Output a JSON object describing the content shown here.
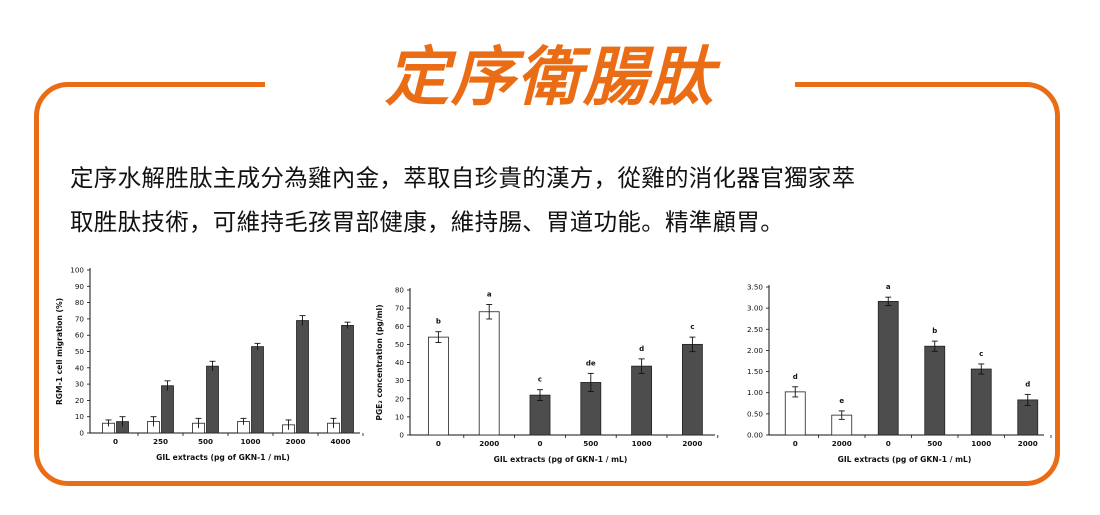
{
  "title": "定序衛腸肽",
  "description": {
    "line1": "定序水解胜肽主成分為雞內金，萃取自珍貴的漢方，從雞的消化器官獨家萃",
    "line2": "取胜肽技術，可維持毛孩胃部健康，維持腸、胃道功能。精準顧胃。"
  },
  "colors": {
    "accent": "#ea6d15",
    "bar_dark": "#4d4d4d",
    "bar_light": "#ffffff"
  },
  "chart_data": [
    {
      "type": "bar",
      "xlabel": "GIL extracts (pg of GKN-1 / mL)",
      "ylabel": "RGM-1 cell migration (%)",
      "ylim": [
        0,
        100
      ],
      "yticks": [
        "0",
        "10",
        "20",
        "30",
        "40",
        "50",
        "60",
        "70",
        "80",
        "90",
        "100"
      ],
      "categories": [
        "0",
        "250",
        "500",
        "1000",
        "2000",
        "4000"
      ],
      "series": [
        {
          "values": [
            6,
            7,
            6,
            7,
            5,
            6
          ],
          "errors": [
            2,
            3,
            3,
            2,
            3,
            3
          ],
          "color": "#ffffff"
        },
        {
          "values": [
            7,
            29,
            41,
            53,
            69,
            66
          ],
          "errors": [
            3,
            3,
            3,
            2,
            3,
            2
          ],
          "color": "#4d4d4d"
        }
      ]
    },
    {
      "type": "bar",
      "xlabel": "GIL extracts (pg of GKN-1 / mL)",
      "ylabel": "PGE₂ concentration (pg/ml)",
      "ylim": [
        0,
        80
      ],
      "yticks": [
        "0",
        "10",
        "20",
        "30",
        "40",
        "50",
        "60",
        "70",
        "80"
      ],
      "categories": [
        "0",
        "2000",
        "0",
        "500",
        "1000",
        "2000"
      ],
      "values": [
        54,
        68,
        22,
        29,
        38,
        50
      ],
      "errors": [
        3,
        4,
        3,
        5,
        4,
        4
      ],
      "colors": [
        "#ffffff",
        "#ffffff",
        "#4d4d4d",
        "#4d4d4d",
        "#4d4d4d",
        "#4d4d4d"
      ],
      "letters": [
        "b",
        "a",
        "c",
        "de",
        "d",
        "c"
      ]
    },
    {
      "type": "bar",
      "xlabel": "GIL extracts (pg of GKN-1 / mL)",
      "ylabel": "",
      "ylim": [
        0,
        3.5
      ],
      "yticks": [
        "0.00",
        "0.50",
        "1.00",
        "1.50",
        "2.00",
        "2.50",
        "3.00",
        "3.50"
      ],
      "categories": [
        "0",
        "2000",
        "0",
        "500",
        "1000",
        "2000"
      ],
      "values": [
        1.02,
        0.47,
        3.16,
        2.1,
        1.56,
        0.83
      ],
      "errors": [
        0.12,
        0.1,
        0.1,
        0.12,
        0.12,
        0.13
      ],
      "colors": [
        "#ffffff",
        "#ffffff",
        "#4d4d4d",
        "#4d4d4d",
        "#4d4d4d",
        "#4d4d4d"
      ],
      "letters": [
        "d",
        "e",
        "a",
        "b",
        "c",
        "d"
      ]
    }
  ]
}
